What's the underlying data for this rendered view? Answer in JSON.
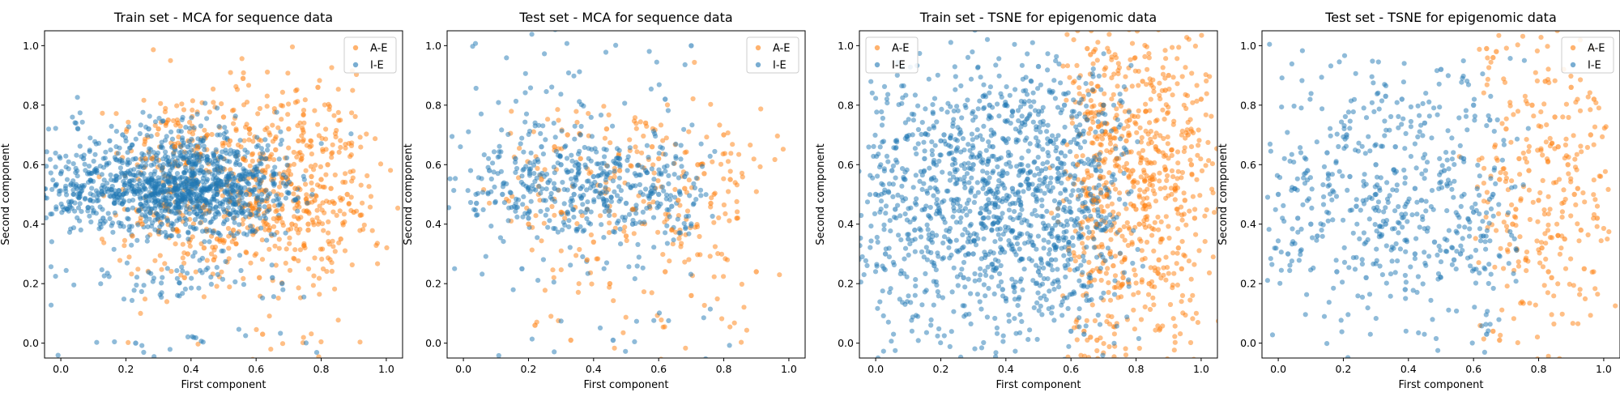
{
  "colors": {
    "A-E": "#ff7f0e",
    "I-E": "#1f77b4"
  },
  "chart_data": [
    {
      "type": "scatter",
      "title": "Train set - MCA for sequence data",
      "xlabel": "First component",
      "ylabel": "Second component",
      "xlim": [
        -0.05,
        1.05
      ],
      "ylim": [
        -0.05,
        1.05
      ],
      "xticks": [
        "0.0",
        "0.2",
        "0.4",
        "0.6",
        "0.8",
        "1.0"
      ],
      "yticks": [
        "0.0",
        "0.2",
        "0.4",
        "0.6",
        "0.8",
        "1.0"
      ],
      "legend_position": "top-right",
      "series": [
        {
          "name": "A-E",
          "color": "#ff7f0e",
          "x": [
            0.22,
            0.25,
            0.28,
            0.3,
            0.33,
            0.36,
            0.39,
            0.42,
            0.45,
            0.48,
            0.5,
            0.53,
            0.56,
            0.58,
            0.6,
            0.62,
            0.64,
            0.66,
            0.68,
            0.7,
            0.72,
            0.74,
            0.76,
            0.78,
            0.8,
            0.82,
            0.84,
            0.86,
            0.88,
            0.9,
            0.92,
            0.56,
            0.62,
            0.38,
            0.79,
            0.47,
            0.73,
            0.61,
            0.26,
            0.35,
            0.44,
            0.52,
            0.67,
            0.71,
            0.77,
            0.83,
            0.58,
            0.64,
            0.7,
            0.76
          ],
          "y": [
            0.36,
            0.4,
            0.62,
            0.72,
            0.75,
            0.74,
            0.3,
            0.66,
            0.7,
            0.35,
            0.76,
            0.38,
            0.62,
            0.72,
            0.55,
            0.58,
            0.38,
            0.65,
            0.45,
            0.72,
            0.52,
            0.62,
            0.4,
            0.48,
            0.55,
            0.6,
            0.47,
            0.35,
            0.5,
            0.44,
            0.43,
            0.89,
            0.03,
            0.22,
            0.86,
            0.28,
            0.68,
            0.22,
            0.62,
            0.66,
            0.32,
            0.68,
            0.42,
            0.4,
            0.56,
            0.52,
            0.5,
            0.46,
            0.58,
            0.38
          ]
        },
        {
          "name": "I-E",
          "color": "#1f77b4",
          "x": [
            0.0,
            0.02,
            0.05,
            0.07,
            0.09,
            0.11,
            0.13,
            0.15,
            0.17,
            0.19,
            0.21,
            0.23,
            0.25,
            0.27,
            0.29,
            0.31,
            0.33,
            0.35,
            0.37,
            0.39,
            0.41,
            0.43,
            0.45,
            0.47,
            0.49,
            0.51,
            0.53,
            0.55,
            0.57,
            0.59,
            0.61,
            0.63,
            0.65,
            0.68,
            0.23,
            0.3,
            0.35,
            0.4,
            0.45,
            0.5,
            0.28,
            0.32,
            0.38,
            0.42,
            0.48,
            0.36,
            0.33,
            0.44,
            0.39,
            0.41
          ],
          "y": [
            0.57,
            0.45,
            0.52,
            0.62,
            0.48,
            0.58,
            0.42,
            0.68,
            0.55,
            0.7,
            0.38,
            0.62,
            0.46,
            0.72,
            0.5,
            0.4,
            0.6,
            0.54,
            0.48,
            0.66,
            0.44,
            0.58,
            0.52,
            0.63,
            0.47,
            0.56,
            0.42,
            0.6,
            0.5,
            0.38,
            0.55,
            0.62,
            0.22,
            0.2,
            0.0,
            0.5,
            0.52,
            0.48,
            0.55,
            0.45,
            0.53,
            0.51,
            0.49,
            0.54,
            0.5,
            0.47,
            0.56,
            0.52,
            0.51,
            0.5
          ]
        }
      ]
    },
    {
      "type": "scatter",
      "title": "Test set - MCA for sequence data",
      "xlabel": "First component",
      "ylabel": "Second component",
      "xlim": [
        -0.05,
        1.05
      ],
      "ylim": [
        -0.05,
        1.05
      ],
      "xticks": [
        "0.0",
        "0.2",
        "0.4",
        "0.6",
        "0.8",
        "1.0"
      ],
      "yticks": [
        "0.0",
        "0.2",
        "0.4",
        "0.6",
        "0.8",
        "1.0"
      ],
      "legend_position": "top-right",
      "series": [
        {
          "name": "A-E",
          "color": "#ff7f0e",
          "x": [
            0.2,
            0.24,
            0.28,
            0.32,
            0.36,
            0.4,
            0.44,
            0.48,
            0.52,
            0.56,
            0.6,
            0.64,
            0.68,
            0.72,
            0.76,
            0.8,
            0.82,
            0.84,
            0.22,
            0.33,
            0.45,
            0.62,
            0.7,
            0.9,
            0.66,
            0.74,
            0.58,
            0.5,
            0.38,
            0.3
          ],
          "y": [
            0.4,
            0.55,
            0.66,
            0.7,
            0.62,
            0.34,
            0.72,
            0.58,
            0.45,
            0.74,
            0.62,
            0.38,
            0.52,
            0.6,
            0.47,
            0.7,
            0.55,
            0.42,
            0.06,
            0.01,
            0.2,
            0.24,
            0.16,
            0.24,
            0.48,
            0.57,
            0.66,
            0.36,
            0.28,
            0.44
          ]
        },
        {
          "name": "I-E",
          "color": "#1f77b4",
          "x": [
            0.04,
            0.08,
            0.12,
            0.16,
            0.2,
            0.24,
            0.28,
            0.32,
            0.36,
            0.4,
            0.44,
            0.48,
            0.52,
            0.56,
            0.6,
            0.64,
            0.68,
            0.7,
            0.46,
            0.18,
            0.26,
            0.34,
            0.42,
            0.5,
            0.62,
            0.3,
            0.38,
            0.36
          ],
          "y": [
            0.47,
            0.58,
            0.5,
            0.62,
            0.42,
            0.66,
            0.52,
            0.44,
            0.7,
            0.56,
            0.48,
            0.62,
            0.4,
            0.58,
            0.5,
            0.46,
            0.56,
            1.0,
            0.01,
            0.25,
            0.54,
            0.5,
            0.53,
            0.47,
            0.82,
            0.6,
            0.45,
            0.52
          ]
        }
      ]
    },
    {
      "type": "scatter",
      "title": "Train set - TSNE for epigenomic data",
      "xlabel": "First component",
      "ylabel": "Second component",
      "xlim": [
        -0.05,
        1.05
      ],
      "ylim": [
        -0.05,
        1.05
      ],
      "xticks": [
        "0.0",
        "0.2",
        "0.4",
        "0.6",
        "0.8",
        "1.0"
      ],
      "yticks": [
        "0.0",
        "0.2",
        "0.4",
        "0.6",
        "0.8",
        "1.0"
      ],
      "legend_position": "top-left",
      "series": [
        {
          "name": "A-E",
          "color": "#ff7f0e",
          "x": [
            0.62,
            0.64,
            0.66,
            0.67,
            0.68,
            0.7,
            0.72,
            0.74,
            0.76,
            0.78,
            0.8,
            0.82,
            0.84,
            0.86,
            0.88,
            0.9,
            0.92,
            0.94,
            0.96,
            0.98,
            1.0,
            0.71,
            0.75,
            0.79,
            0.83,
            0.87,
            0.91,
            0.95,
            0.65,
            0.66,
            0.67,
            0.64,
            0.66,
            0.68,
            0.85,
            0.89,
            0.93,
            0.97,
            0.81,
            0.77,
            0.73,
            0.69
          ],
          "y": [
            0.6,
            0.55,
            0.72,
            0.48,
            0.4,
            0.8,
            0.3,
            0.62,
            0.22,
            0.75,
            0.45,
            0.88,
            0.2,
            0.66,
            0.35,
            0.9,
            0.52,
            0.25,
            0.7,
            0.42,
            0.82,
            0.5,
            0.38,
            0.58,
            0.78,
            0.28,
            0.65,
            0.48,
            0.99,
            0.97,
            0.98,
            0.04,
            0.02,
            0.01,
            0.55,
            0.85,
            0.32,
            0.6,
            0.4,
            0.68,
            0.26,
            0.56
          ]
        },
        {
          "name": "I-E",
          "color": "#1f77b4",
          "x": [
            0.0,
            0.03,
            0.06,
            0.09,
            0.12,
            0.15,
            0.18,
            0.21,
            0.24,
            0.27,
            0.3,
            0.33,
            0.36,
            0.39,
            0.42,
            0.45,
            0.48,
            0.51,
            0.54,
            0.57,
            0.6,
            0.63,
            0.66,
            0.69,
            0.05,
            0.1,
            0.2,
            0.3,
            0.4,
            0.5,
            0.33,
            0.35,
            0.42,
            0.5,
            0.58,
            0.65,
            0.7,
            0.62,
            0.25,
            0.44,
            0.56,
            0.15,
            0.36,
            0.47,
            0.64,
            0.6
          ],
          "y": [
            0.5,
            0.3,
            0.45,
            0.55,
            0.38,
            0.62,
            0.26,
            0.7,
            0.48,
            0.22,
            0.6,
            0.42,
            0.66,
            0.18,
            0.52,
            0.74,
            0.34,
            0.58,
            0.28,
            0.64,
            0.44,
            0.36,
            0.5,
            0.4,
            0.58,
            0.35,
            0.68,
            0.3,
            0.15,
            0.24,
            0.83,
            0.8,
            0.78,
            0.93,
            0.8,
            0.75,
            0.8,
            0.25,
            0.55,
            0.48,
            0.62,
            0.45,
            0.4,
            0.52,
            0.03,
            0.04
          ]
        }
      ]
    },
    {
      "type": "scatter",
      "title": "Test set - TSNE for epigenomic data",
      "xlabel": "First component",
      "ylabel": "Second component",
      "xlim": [
        -0.05,
        1.05
      ],
      "ylim": [
        -0.05,
        1.05
      ],
      "xticks": [
        "0.0",
        "0.2",
        "0.4",
        "0.6",
        "0.8",
        "1.0"
      ],
      "yticks": [
        "0.0",
        "0.2",
        "0.4",
        "0.6",
        "0.8",
        "1.0"
      ],
      "legend_position": "top-right",
      "series": [
        {
          "name": "A-E",
          "color": "#ff7f0e",
          "x": [
            0.68,
            0.7,
            0.72,
            0.74,
            0.76,
            0.78,
            0.8,
            0.82,
            0.84,
            0.86,
            0.88,
            0.9,
            0.92,
            0.94,
            0.96,
            0.98,
            0.73,
            0.77,
            0.81,
            0.85,
            0.89,
            0.93,
            0.97,
            0.64,
            0.66,
            0.67,
            0.66,
            0.68,
            0.83,
            0.91
          ],
          "y": [
            0.55,
            0.72,
            0.4,
            0.62,
            0.28,
            0.8,
            0.48,
            0.88,
            0.22,
            0.66,
            0.35,
            0.86,
            0.52,
            0.25,
            0.7,
            0.42,
            0.45,
            0.58,
            0.32,
            0.76,
            0.6,
            0.38,
            0.82,
            0.99,
            0.96,
            0.98,
            0.04,
            0.01,
            0.24,
            0.5
          ]
        },
        {
          "name": "I-E",
          "color": "#1f77b4",
          "x": [
            0.0,
            0.03,
            0.06,
            0.09,
            0.12,
            0.15,
            0.18,
            0.21,
            0.24,
            0.27,
            0.3,
            0.33,
            0.36,
            0.39,
            0.42,
            0.45,
            0.48,
            0.51,
            0.54,
            0.57,
            0.6,
            0.63,
            0.66,
            0.33,
            0.38,
            0.5,
            0.6,
            0.65,
            0.1,
            0.22,
            0.44,
            0.56,
            0.64,
            0.3,
            0.42
          ],
          "y": [
            0.5,
            0.3,
            0.42,
            0.58,
            0.36,
            0.64,
            0.24,
            0.7,
            0.46,
            0.22,
            0.6,
            0.4,
            0.66,
            0.18,
            0.52,
            0.74,
            0.34,
            0.58,
            0.28,
            0.62,
            0.44,
            0.36,
            0.5,
            0.83,
            0.82,
            0.92,
            0.8,
            0.75,
            0.4,
            0.56,
            0.48,
            0.3,
            0.03,
            0.5,
            0.3
          ]
        }
      ]
    }
  ]
}
